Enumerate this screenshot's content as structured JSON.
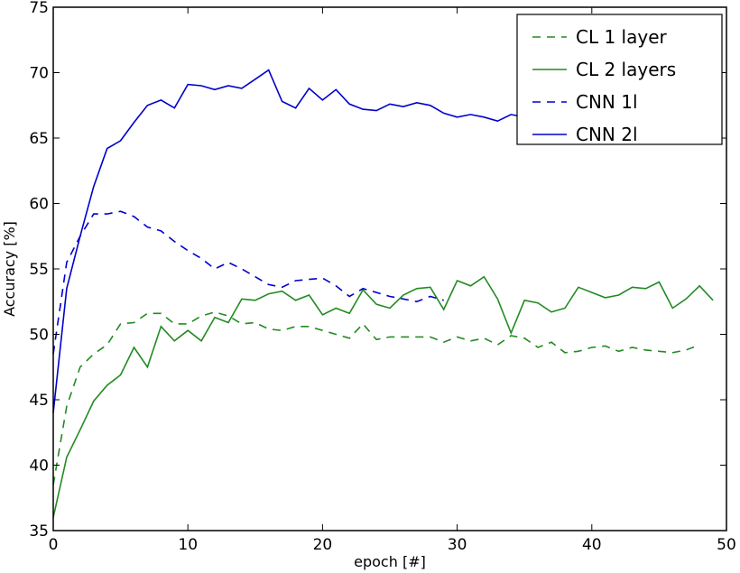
{
  "chart_data": {
    "type": "line",
    "title": "",
    "xlabel": "epoch [#]",
    "ylabel": "Accuracy [%]",
    "xlim": [
      0,
      50
    ],
    "ylim": [
      35,
      75
    ],
    "xticks": [
      0,
      10,
      20,
      30,
      40,
      50
    ],
    "yticks": [
      35,
      40,
      45,
      50,
      55,
      60,
      65,
      70,
      75
    ],
    "grid": false,
    "legend_position": "top-right",
    "series": [
      {
        "name": "CL 1 layer",
        "color": "#228B22",
        "style": "dashed",
        "values": [
          38.5,
          44.5,
          47.5,
          48.5,
          49.2,
          50.8,
          50.9,
          51.6,
          51.6,
          50.8,
          50.8,
          51.4,
          51.7,
          51.4,
          50.8,
          50.9,
          50.4,
          50.3,
          50.6,
          50.6,
          50.3,
          50.0,
          49.7,
          50.8,
          49.6,
          49.8,
          49.8,
          49.8,
          49.8,
          49.4,
          49.8,
          49.5,
          49.7,
          49.2,
          49.9,
          49.7,
          49.0,
          49.4,
          48.6,
          48.7,
          49.0,
          49.1,
          48.7,
          49.0,
          48.8,
          48.7,
          48.6,
          48.8,
          49.2
        ]
      },
      {
        "name": "CL 2 layers",
        "color": "#228B22",
        "style": "solid",
        "values": [
          36.0,
          40.6,
          42.7,
          44.9,
          46.1,
          46.9,
          49.0,
          47.5,
          50.6,
          49.5,
          50.3,
          49.5,
          51.3,
          50.9,
          52.7,
          52.6,
          53.1,
          53.3,
          52.6,
          53.0,
          51.5,
          52.0,
          51.6,
          53.4,
          52.3,
          52.0,
          53.0,
          53.5,
          53.6,
          51.9,
          54.1,
          53.7,
          54.4,
          52.7,
          50.1,
          52.6,
          52.4,
          51.7,
          52.0,
          53.6,
          53.2,
          52.8,
          53.0,
          53.6,
          53.5,
          54.0,
          52.0,
          52.7,
          53.7,
          52.6
        ]
      },
      {
        "name": "CNN 1l",
        "color": "#0000CC",
        "style": "dashed",
        "values": [
          48.5,
          55.5,
          57.5,
          59.2,
          59.2,
          59.4,
          59.0,
          58.2,
          57.9,
          57.1,
          56.4,
          55.8,
          55.0,
          55.5,
          55.0,
          54.4,
          53.8,
          53.6,
          54.1,
          54.2,
          54.3,
          53.7,
          52.9,
          53.5,
          53.2,
          52.9,
          52.7,
          52.5,
          52.9,
          52.6
        ]
      },
      {
        "name": "CNN 2l",
        "color": "#0000CC",
        "style": "solid",
        "values": [
          44.0,
          53.5,
          57.5,
          61.3,
          64.2,
          64.8,
          66.2,
          67.5,
          67.9,
          67.3,
          69.1,
          69.0,
          68.7,
          69.0,
          68.8,
          69.5,
          70.2,
          67.8,
          67.3,
          68.8,
          67.9,
          68.7,
          67.6,
          67.2,
          67.1,
          67.6,
          67.4,
          67.7,
          67.5,
          66.9,
          66.6,
          66.8,
          66.6,
          66.3,
          66.8,
          66.6
        ]
      }
    ]
  }
}
